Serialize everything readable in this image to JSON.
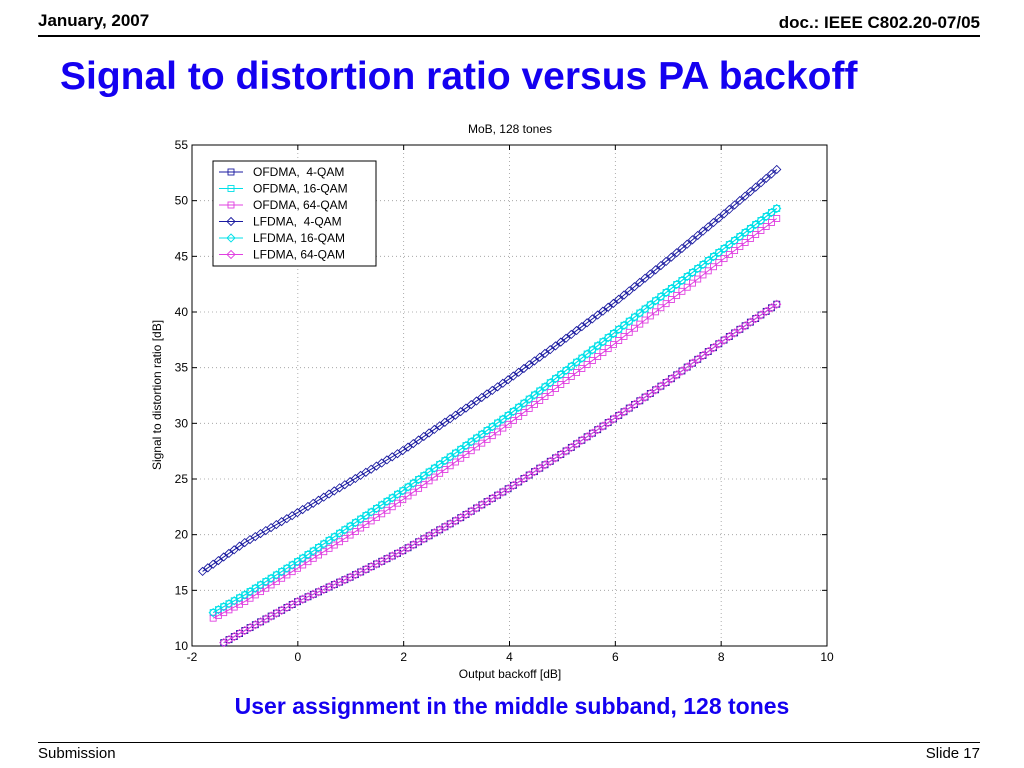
{
  "header": {
    "date": "January, 2007",
    "doc": "doc.: IEEE C802.20-07/05"
  },
  "slide": {
    "title": "Signal to distortion ratio versus PA backoff",
    "caption": "User assignment in the middle subband, 128 tones"
  },
  "footer": {
    "left": "Submission",
    "right": "Slide 17"
  },
  "chart_data": {
    "type": "line",
    "title": "MoB, 128 tones",
    "xlabel": "Output backoff [dB]",
    "ylabel": "Signal to distortion ratio [dB]",
    "xlim": [
      -2,
      10
    ],
    "ylim": [
      10,
      55
    ],
    "xticks": [
      -2,
      0,
      2,
      4,
      6,
      8,
      10
    ],
    "yticks": [
      10,
      15,
      20,
      25,
      30,
      35,
      40,
      45,
      50,
      55
    ],
    "grid": true,
    "legend_position": "top-left",
    "series": [
      {
        "name": "OFDMA,  4-QAM",
        "color": "#1a1aa0",
        "marker": "square",
        "x": [
          -1.4,
          -1,
          0,
          1,
          2,
          3,
          4,
          5,
          6,
          7,
          8,
          9.05
        ],
        "y": [
          10.3,
          11.4,
          14.0,
          16.2,
          18.6,
          21.3,
          24.2,
          27.3,
          30.5,
          33.8,
          37.3,
          40.7
        ]
      },
      {
        "name": "OFDMA, 16-QAM",
        "color": "#00e0e8",
        "marker": "square",
        "x": [
          -1.6,
          -1,
          0,
          1,
          2,
          3,
          4,
          5,
          6,
          7,
          8,
          9.05
        ],
        "y": [
          13.0,
          14.6,
          17.6,
          20.8,
          24.0,
          27.4,
          30.8,
          34.5,
          38.2,
          41.9,
          45.5,
          49.3
        ]
      },
      {
        "name": "OFDMA, 64-QAM",
        "color": "#e040e0",
        "marker": "square",
        "x": [
          -1.6,
          -1,
          0,
          1,
          2,
          3,
          4,
          5,
          6,
          7,
          8,
          9.05
        ],
        "y": [
          12.5,
          14.0,
          17.0,
          20.0,
          23.2,
          26.6,
          30.0,
          33.6,
          37.2,
          40.9,
          44.6,
          48.4
        ]
      },
      {
        "name": "LFDMA,  4-QAM",
        "color": "#1a1aa0",
        "marker": "diamond",
        "x": [
          -1.8,
          -1,
          0,
          1,
          2,
          3,
          4,
          5,
          6,
          7,
          8,
          9.05
        ],
        "y": [
          16.7,
          19.3,
          22.0,
          24.8,
          27.6,
          30.8,
          34.0,
          37.4,
          40.9,
          44.7,
          48.6,
          52.8
        ]
      },
      {
        "name": "LFDMA, 16-QAM",
        "color": "#00e0e8",
        "marker": "diamond",
        "x": [
          -1.6,
          -1,
          0,
          1,
          2,
          3,
          4,
          5,
          6,
          7,
          8,
          9.05
        ],
        "y": [
          13.0,
          14.6,
          17.6,
          20.8,
          24.0,
          27.4,
          30.8,
          34.5,
          38.2,
          41.9,
          45.5,
          49.3
        ]
      },
      {
        "name": "LFDMA, 64-QAM",
        "color": "#e040e0",
        "marker": "diamond",
        "x": [
          -1.4,
          -1,
          0,
          1,
          2,
          3,
          4,
          5,
          6,
          7,
          8,
          9.05
        ],
        "y": [
          10.3,
          11.4,
          14.0,
          16.2,
          18.6,
          21.3,
          24.2,
          27.3,
          30.5,
          33.8,
          37.3,
          40.7
        ]
      }
    ]
  }
}
